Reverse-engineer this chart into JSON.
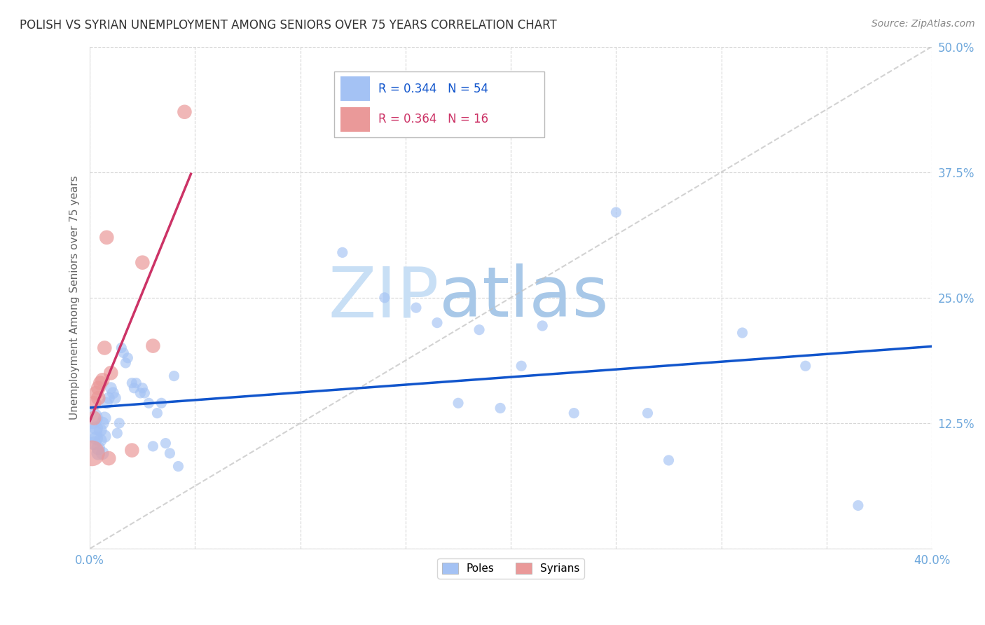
{
  "title": "POLISH VS SYRIAN UNEMPLOYMENT AMONG SENIORS OVER 75 YEARS CORRELATION CHART",
  "source": "Source: ZipAtlas.com",
  "ylabel": "Unemployment Among Seniors over 75 years",
  "xlim": [
    0.0,
    0.4
  ],
  "ylim": [
    0.0,
    0.5
  ],
  "poles_R": 0.344,
  "poles_N": 54,
  "syrians_R": 0.364,
  "syrians_N": 16,
  "poles_color": "#a4c2f4",
  "syrians_color": "#ea9999",
  "trendline_poles_color": "#1155cc",
  "trendline_syrians_color": "#cc3366",
  "diagonal_color": "#c0c0c0",
  "background_color": "#ffffff",
  "grid_color": "#cccccc",
  "tick_color": "#6fa8dc",
  "poles_x": [
    0.001,
    0.002,
    0.002,
    0.003,
    0.003,
    0.004,
    0.004,
    0.005,
    0.005,
    0.006,
    0.006,
    0.007,
    0.007,
    0.008,
    0.009,
    0.01,
    0.011,
    0.012,
    0.013,
    0.014,
    0.015,
    0.016,
    0.017,
    0.018,
    0.02,
    0.021,
    0.022,
    0.024,
    0.025,
    0.026,
    0.028,
    0.03,
    0.032,
    0.034,
    0.036,
    0.038,
    0.04,
    0.042,
    0.12,
    0.14,
    0.155,
    0.165,
    0.175,
    0.185,
    0.195,
    0.205,
    0.215,
    0.23,
    0.25,
    0.265,
    0.275,
    0.31,
    0.34,
    0.365
  ],
  "poles_y": [
    0.13,
    0.115,
    0.105,
    0.12,
    0.11,
    0.1,
    0.095,
    0.118,
    0.108,
    0.125,
    0.095,
    0.13,
    0.112,
    0.145,
    0.15,
    0.16,
    0.155,
    0.15,
    0.115,
    0.125,
    0.2,
    0.195,
    0.185,
    0.19,
    0.165,
    0.16,
    0.165,
    0.155,
    0.16,
    0.155,
    0.145,
    0.102,
    0.135,
    0.145,
    0.105,
    0.095,
    0.172,
    0.082,
    0.295,
    0.25,
    0.24,
    0.225,
    0.145,
    0.218,
    0.14,
    0.182,
    0.222,
    0.135,
    0.335,
    0.135,
    0.088,
    0.215,
    0.182,
    0.043
  ],
  "poles_sizes": [
    500,
    300,
    200,
    200,
    200,
    200,
    200,
    180,
    180,
    180,
    180,
    180,
    180,
    150,
    150,
    150,
    150,
    150,
    120,
    120,
    120,
    120,
    120,
    120,
    120,
    120,
    120,
    120,
    120,
    120,
    120,
    120,
    120,
    120,
    120,
    120,
    120,
    120,
    120,
    120,
    120,
    120,
    120,
    120,
    120,
    120,
    120,
    120,
    120,
    120,
    120,
    120,
    120,
    120
  ],
  "syrians_x": [
    0.001,
    0.002,
    0.002,
    0.003,
    0.004,
    0.004,
    0.005,
    0.006,
    0.007,
    0.008,
    0.009,
    0.01,
    0.02,
    0.025,
    0.03,
    0.045
  ],
  "syrians_y": [
    0.095,
    0.13,
    0.145,
    0.155,
    0.15,
    0.16,
    0.165,
    0.168,
    0.2,
    0.31,
    0.09,
    0.175,
    0.098,
    0.285,
    0.202,
    0.435
  ],
  "syrians_sizes": [
    700,
    220,
    220,
    220,
    220,
    220,
    220,
    220,
    220,
    220,
    220,
    220,
    220,
    220,
    220,
    220
  ],
  "syrian_trendline_x_end": 0.048,
  "poles_trendline_intercept": 0.122,
  "poles_trendline_slope": 0.3,
  "syrians_trendline_intercept": 0.13,
  "syrians_trendline_slope": 6.2
}
